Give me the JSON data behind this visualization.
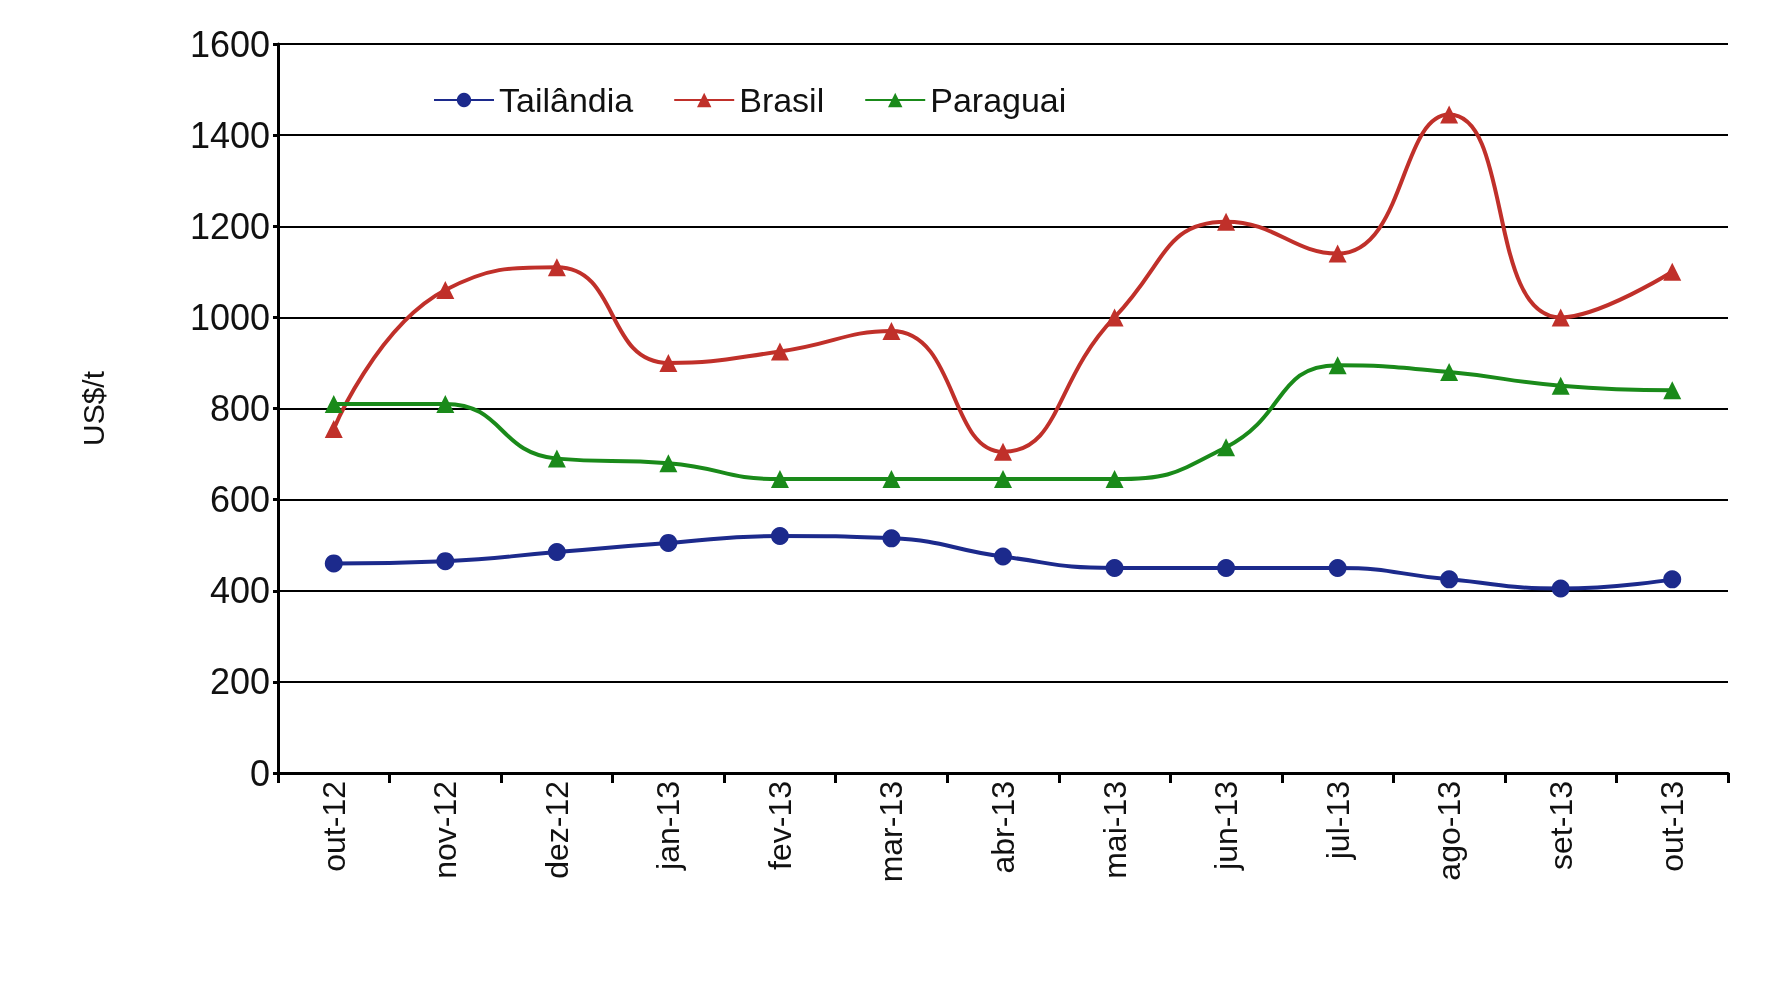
{
  "chart_data": {
    "type": "line",
    "ylabel": "US$/t",
    "categories": [
      "out-12",
      "nov-12",
      "dez-12",
      "jan-13",
      "fev-13",
      "mar-13",
      "abr-13",
      "mai-13",
      "jun-13",
      "jul-13",
      "ago-13",
      "set-13",
      "out-13"
    ],
    "series": [
      {
        "name": "Tailândia",
        "color": "#1c2a8c",
        "marker": "circle",
        "values": [
          460,
          465,
          485,
          505,
          520,
          515,
          475,
          450,
          450,
          450,
          425,
          405,
          425
        ]
      },
      {
        "name": "Brasil",
        "color": "#c0302a",
        "marker": "triangle",
        "values": [
          755,
          1060,
          1110,
          900,
          925,
          970,
          705,
          1000,
          1210,
          1140,
          1445,
          1000,
          1100
        ]
      },
      {
        "name": "Paraguai",
        "color": "#1a8a1a",
        "marker": "triangle",
        "values": [
          810,
          810,
          690,
          680,
          645,
          645,
          645,
          645,
          715,
          895,
          880,
          850,
          840
        ]
      }
    ],
    "ylim": [
      0,
      1600
    ],
    "yticks": [
      0,
      200,
      400,
      600,
      800,
      1000,
      1200,
      1400,
      1600
    ],
    "grid": "y",
    "legend": "top left"
  }
}
